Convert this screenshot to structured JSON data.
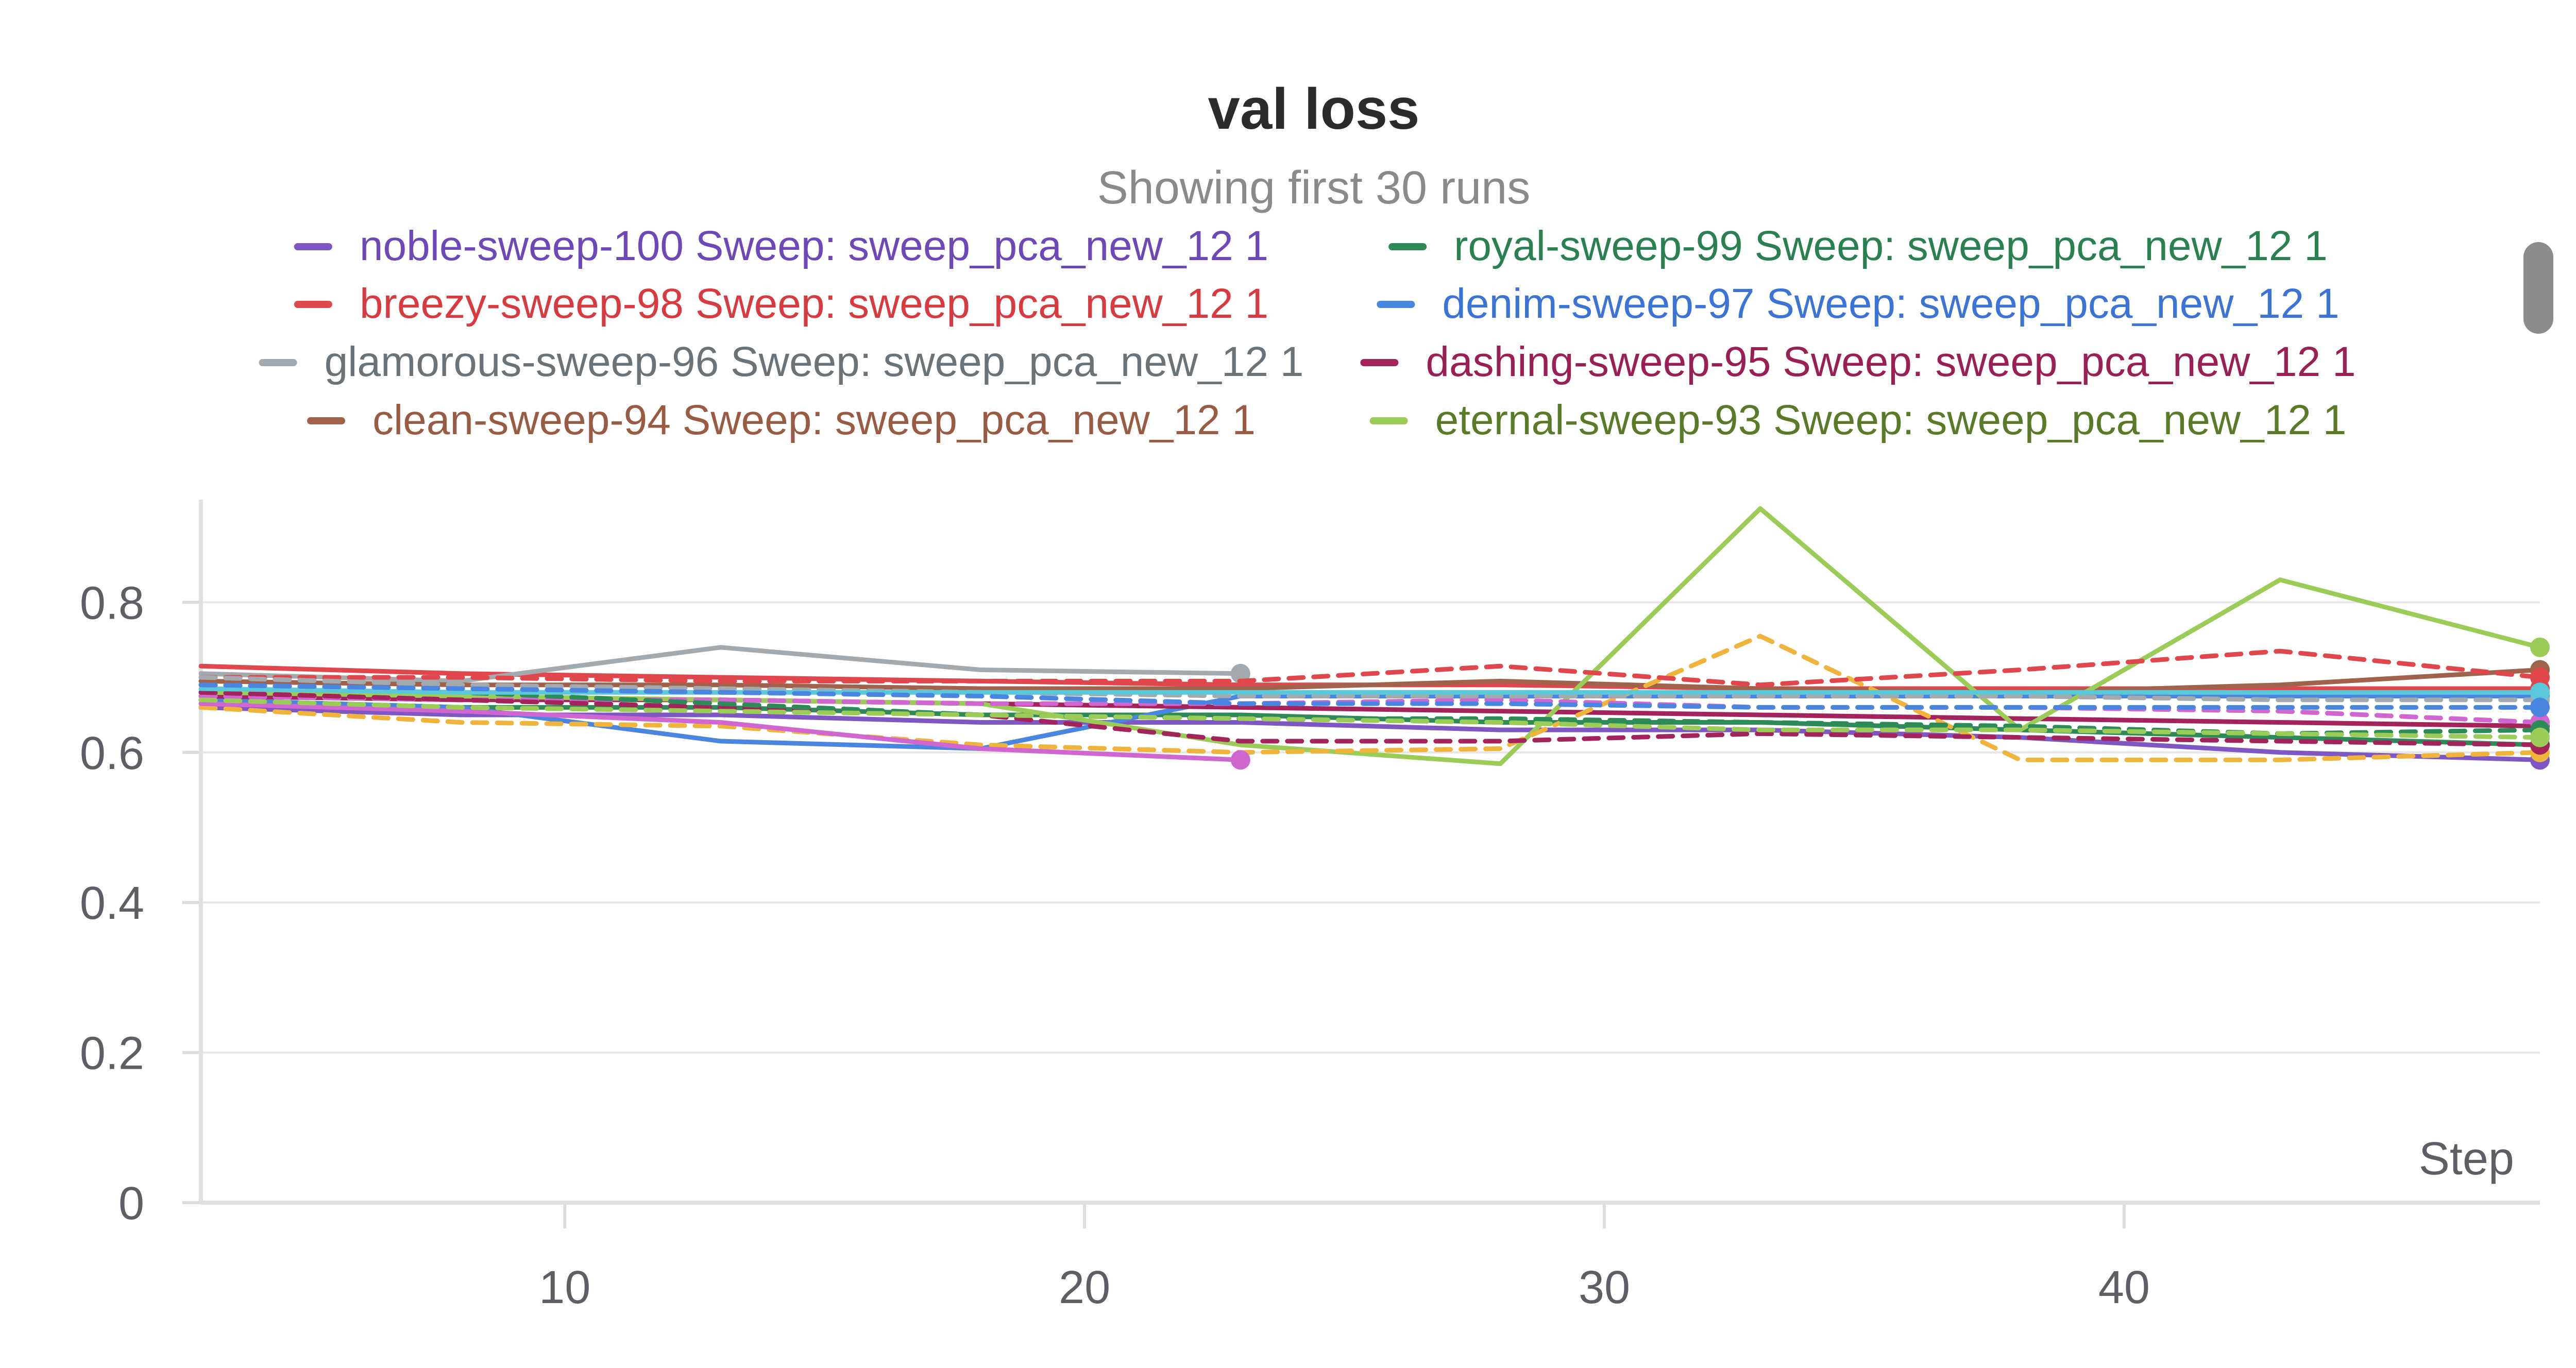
{
  "chart_data": {
    "type": "line",
    "title": "val loss",
    "subtitle": "Showing first 30 runs",
    "xlabel": "Step",
    "ylabel": "",
    "xlim": [
      3,
      48
    ],
    "ylim": [
      0,
      0.93
    ],
    "xticks": [
      10,
      20,
      30,
      40
    ],
    "yticks": [
      0,
      0.2,
      0.4,
      0.6,
      0.8
    ],
    "grid": true,
    "legend_position": "top",
    "series": [
      {
        "name": "noble-sweep-100 Sweep: sweep_pca_new_12 1",
        "legend": true,
        "color": "#7e57c2",
        "label_color": "#6d48b8",
        "dash": false,
        "x": [
          3,
          8,
          13,
          18,
          23,
          28,
          33,
          38,
          43,
          48
        ],
        "y": [
          0.66,
          0.65,
          0.65,
          0.64,
          0.64,
          0.63,
          0.63,
          0.62,
          0.6,
          0.59
        ]
      },
      {
        "name": "royal-sweep-99 Sweep: sweep_pca_new_12 1",
        "legend": true,
        "color": "#2e8b57",
        "label_color": "#2a8050",
        "dash": false,
        "x": [
          3,
          8,
          13,
          18,
          23,
          28,
          33,
          38,
          43,
          48
        ],
        "y": [
          0.67,
          0.66,
          0.66,
          0.65,
          0.65,
          0.64,
          0.64,
          0.63,
          0.62,
          0.61
        ]
      },
      {
        "name": "breezy-sweep-98 Sweep: sweep_pca_new_12 1",
        "legend": true,
        "color": "#e0474c",
        "label_color": "#d93a40",
        "dash": false,
        "x": [
          3,
          8,
          13,
          18,
          23,
          28,
          33,
          38,
          43,
          48
        ],
        "y": [
          0.715,
          0.705,
          0.7,
          0.695,
          0.69,
          0.69,
          0.685,
          0.685,
          0.685,
          0.685
        ]
      },
      {
        "name": "denim-sweep-97 Sweep: sweep_pca_new_12 1",
        "legend": true,
        "color": "#4a86e0",
        "label_color": "#3b73d6",
        "dash": false,
        "x": [
          3,
          8,
          13,
          18,
          23,
          28,
          33,
          38,
          43,
          48
        ],
        "y": [
          0.67,
          0.66,
          0.615,
          0.605,
          0.675,
          0.675,
          0.675,
          0.675,
          0.675,
          0.675
        ]
      },
      {
        "name": "glamorous-sweep-96 Sweep: sweep_pca_new_12 1",
        "legend": true,
        "color": "#a4a9ad",
        "label_color": "#6b7278",
        "dash": false,
        "x": [
          3,
          8,
          13,
          18,
          23
        ],
        "y": [
          0.705,
          0.695,
          0.74,
          0.71,
          0.705
        ]
      },
      {
        "name": "dashing-sweep-95 Sweep: sweep_pca_new_12 1",
        "legend": true,
        "color": "#a3245a",
        "label_color": "#9a1f55",
        "dash": false,
        "x": [
          3,
          8,
          13,
          18,
          23,
          28,
          33,
          38,
          43,
          48
        ],
        "y": [
          0.675,
          0.67,
          0.67,
          0.665,
          0.66,
          0.655,
          0.65,
          0.645,
          0.64,
          0.635
        ]
      },
      {
        "name": "clean-sweep-94 Sweep: sweep_pca_new_12 1",
        "legend": true,
        "color": "#a0624a",
        "label_color": "#9a5b43",
        "dash": false,
        "x": [
          3,
          8,
          13,
          18,
          23,
          28,
          33,
          38,
          43,
          48
        ],
        "y": [
          0.695,
          0.69,
          0.69,
          0.685,
          0.685,
          0.695,
          0.685,
          0.68,
          0.69,
          0.71
        ]
      },
      {
        "name": "eternal-sweep-93 Sweep: sweep_pca_new_12 1",
        "legend": true,
        "color": "#9ccc58",
        "label_color": "#5a7a28",
        "dash": false,
        "x": [
          3,
          8,
          13,
          18,
          23,
          28,
          33,
          38,
          43,
          48
        ],
        "y": [
          0.68,
          0.675,
          0.67,
          0.665,
          0.61,
          0.585,
          0.925,
          0.63,
          0.83,
          0.74
        ]
      },
      {
        "name": "",
        "legend": false,
        "color": "#f0b43c",
        "label_color": "#f0b43c",
        "dash": true,
        "x": [
          3,
          8,
          13,
          18,
          23,
          28,
          33,
          38,
          43,
          48
        ],
        "y": [
          0.66,
          0.64,
          0.635,
          0.61,
          0.6,
          0.605,
          0.755,
          0.59,
          0.59,
          0.6
        ]
      },
      {
        "name": "",
        "legend": false,
        "color": "#e0474c",
        "label_color": "#e0474c",
        "dash": true,
        "x": [
          3,
          8,
          13,
          18,
          23,
          28,
          33,
          38,
          43,
          48
        ],
        "y": [
          0.7,
          0.7,
          0.695,
          0.695,
          0.695,
          0.715,
          0.69,
          0.71,
          0.735,
          0.7
        ]
      },
      {
        "name": "",
        "legend": false,
        "color": "#d066d0",
        "label_color": "#d066d0",
        "dash": false,
        "x": [
          3,
          8,
          13,
          18,
          23
        ],
        "y": [
          0.665,
          0.655,
          0.64,
          0.605,
          0.59
        ]
      },
      {
        "name": "",
        "legend": false,
        "color": "#d066d0",
        "label_color": "#d066d0",
        "dash": true,
        "x": [
          3,
          8,
          13,
          18,
          23,
          28,
          33,
          38,
          43,
          48
        ],
        "y": [
          0.675,
          0.67,
          0.67,
          0.665,
          0.665,
          0.67,
          0.66,
          0.66,
          0.655,
          0.64
        ]
      },
      {
        "name": "",
        "legend": false,
        "color": "#a3245a",
        "label_color": "#a3245a",
        "dash": true,
        "x": [
          3,
          8,
          13,
          18,
          23,
          28,
          33,
          38,
          43,
          48
        ],
        "y": [
          0.68,
          0.67,
          0.66,
          0.65,
          0.615,
          0.615,
          0.625,
          0.62,
          0.615,
          0.61
        ]
      },
      {
        "name": "",
        "legend": false,
        "color": "#2e8b57",
        "label_color": "#2e8b57",
        "dash": true,
        "x": [
          3,
          8,
          13,
          18,
          23,
          28,
          33,
          38,
          43,
          48
        ],
        "y": [
          0.69,
          0.68,
          0.665,
          0.65,
          0.645,
          0.645,
          0.64,
          0.635,
          0.625,
          0.63
        ]
      },
      {
        "name": "",
        "legend": false,
        "color": "#9ccc58",
        "label_color": "#9ccc58",
        "dash": true,
        "x": [
          3,
          8,
          13,
          18,
          23,
          28,
          33,
          38,
          43,
          48
        ],
        "y": [
          0.67,
          0.66,
          0.655,
          0.65,
          0.645,
          0.64,
          0.63,
          0.63,
          0.625,
          0.62
        ]
      },
      {
        "name": "",
        "legend": false,
        "color": "#a4a9ad",
        "label_color": "#a4a9ad",
        "dash": true,
        "x": [
          3,
          8,
          13,
          18,
          23,
          28,
          33,
          38,
          43,
          48
        ],
        "y": [
          0.7,
          0.69,
          0.685,
          0.68,
          0.675,
          0.675,
          0.675,
          0.675,
          0.67,
          0.67
        ]
      },
      {
        "name": "",
        "legend": false,
        "color": "#5ac8d8",
        "label_color": "#5ac8d8",
        "dash": false,
        "x": [
          3,
          8,
          13,
          18,
          23,
          28,
          33,
          38,
          43,
          48
        ],
        "y": [
          0.685,
          0.68,
          0.68,
          0.68,
          0.68,
          0.68,
          0.68,
          0.68,
          0.68,
          0.68
        ]
      },
      {
        "name": "",
        "legend": false,
        "color": "#4a86e0",
        "label_color": "#4a86e0",
        "dash": true,
        "x": [
          3,
          8,
          13,
          18,
          23,
          28,
          33,
          38,
          43,
          48
        ],
        "y": [
          0.69,
          0.685,
          0.68,
          0.675,
          0.665,
          0.665,
          0.66,
          0.66,
          0.66,
          0.66
        ]
      }
    ]
  },
  "scrollbar": {
    "color": "#8c8c8c"
  }
}
